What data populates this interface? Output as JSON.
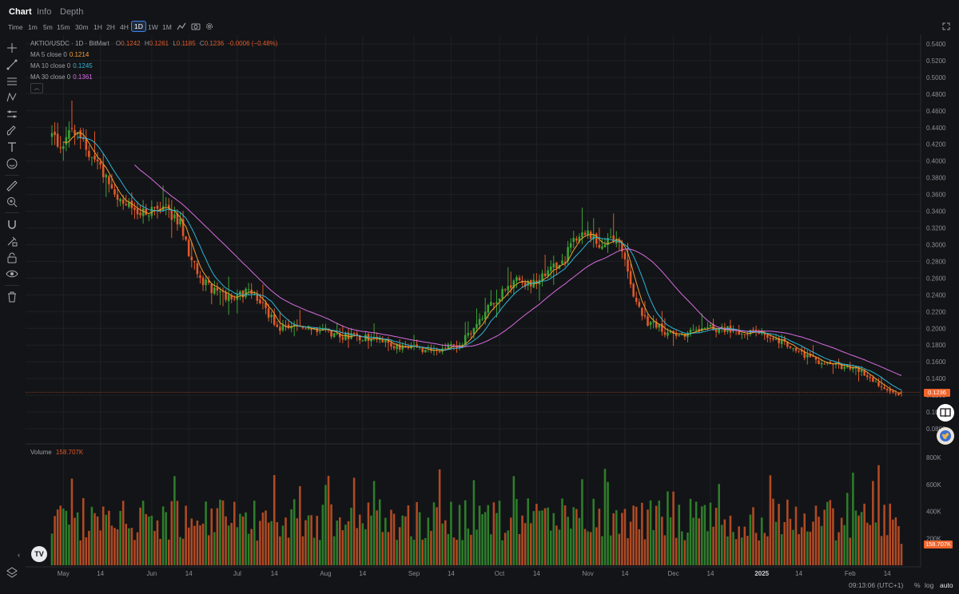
{
  "nav": {
    "tabs": [
      "Chart",
      "Info",
      "Depth"
    ],
    "active": 0
  },
  "toolbar": {
    "timeframes": [
      "Time",
      "1m",
      "5m",
      "15m",
      "30m",
      "1H",
      "2H",
      "4H",
      "1D",
      "1W",
      "1M"
    ],
    "active": 8,
    "icons": [
      "indicator-icon",
      "camera-icon",
      "settings-icon"
    ],
    "fullscreen_icon": "fullscreen-icon"
  },
  "left_tools": [
    "crosshair-icon",
    "trendline-icon",
    "fib-icon",
    "pattern-icon",
    "measure-lines-icon",
    "brush-icon",
    "text-icon",
    "emoji-icon",
    "ruler-icon",
    "zoom-in-icon",
    "magnet-icon",
    "lock-drawing-icon",
    "lock-icon",
    "eye-icon",
    "trash-icon"
  ],
  "legend": {
    "symbol": "AKTIO/USDC · 1D · BitMart",
    "ohlc": {
      "o_label": "O",
      "o": "0.1242",
      "h_label": "H",
      "h": "0.1261",
      "l_label": "L",
      "l": "0.1185",
      "c_label": "C",
      "c": "0.1236",
      "change": "-0.0006 (−0.48%)"
    },
    "ma": [
      {
        "label": "MA 5 close 0",
        "value": "0.1214",
        "color": "#f0a030"
      },
      {
        "label": "MA 10 close 0",
        "value": "0.1245",
        "color": "#2fb4d6"
      },
      {
        "label": "MA 30 close 0",
        "value": "0.1361",
        "color": "#d76ce0"
      }
    ]
  },
  "volume_legend": {
    "label": "Volume",
    "value": "158.707K"
  },
  "price_tag": "0.1236",
  "volume_tag": "158.707K",
  "footer": {
    "time": "09:13:06 (UTC+1)",
    "percent": "%",
    "log": "log",
    "auto": "auto"
  },
  "colors": {
    "up": "#3aa335",
    "down": "#e0592a",
    "bg": "#131417",
    "grid": "#1e2025",
    "ma5": "#f0a030",
    "ma10": "#2fb4d6",
    "ma30": "#d76ce0"
  },
  "chart_data": {
    "type": "candlestick",
    "symbol": "AKTIO/USDC",
    "interval": "1D",
    "y_ticks": [
      "0.5400",
      "0.5200",
      "0.5000",
      "0.4800",
      "0.4600",
      "0.4400",
      "0.4200",
      "0.4000",
      "0.3800",
      "0.3600",
      "0.3400",
      "0.3200",
      "0.3000",
      "0.2800",
      "0.2600",
      "0.2400",
      "0.2200",
      "0.2000",
      "0.1800",
      "0.1600",
      "0.1400",
      "0.1200",
      "0.1000",
      "0.0800"
    ],
    "ylim": [
      0.08,
      0.54
    ],
    "volume_ticks": [
      "800K",
      "600K",
      "400K",
      "200K"
    ],
    "volume_lim": [
      0,
      830000
    ],
    "x_ticks": [
      {
        "label": "May",
        "day": 4
      },
      {
        "label": "14",
        "day": 17
      },
      {
        "label": "Jun",
        "day": 35
      },
      {
        "label": "14",
        "day": 48
      },
      {
        "label": "Jul",
        "day": 65
      },
      {
        "label": "14",
        "day": 78
      },
      {
        "label": "Aug",
        "day": 96
      },
      {
        "label": "14",
        "day": 109
      },
      {
        "label": "Sep",
        "day": 127
      },
      {
        "label": "14",
        "day": 140
      },
      {
        "label": "Oct",
        "day": 157
      },
      {
        "label": "14",
        "day": 170
      },
      {
        "label": "Nov",
        "day": 188
      },
      {
        "label": "14",
        "day": 201
      },
      {
        "label": "Dec",
        "day": 218
      },
      {
        "label": "14",
        "day": 231
      },
      {
        "label": "2025",
        "day": 249
      },
      {
        "label": "14",
        "day": 262
      },
      {
        "label": "Feb",
        "day": 280
      },
      {
        "label": "14",
        "day": 293
      }
    ],
    "anchor_closes": [
      [
        0,
        0.43
      ],
      [
        3,
        0.42
      ],
      [
        7,
        0.44
      ],
      [
        12,
        0.42
      ],
      [
        15,
        0.4
      ],
      [
        20,
        0.38
      ],
      [
        24,
        0.35
      ],
      [
        28,
        0.34
      ],
      [
        35,
        0.34
      ],
      [
        40,
        0.34
      ],
      [
        45,
        0.33
      ],
      [
        48,
        0.29
      ],
      [
        52,
        0.26
      ],
      [
        56,
        0.245
      ],
      [
        60,
        0.24
      ],
      [
        66,
        0.24
      ],
      [
        70,
        0.245
      ],
      [
        75,
        0.22
      ],
      [
        80,
        0.2
      ],
      [
        90,
        0.2
      ],
      [
        96,
        0.2
      ],
      [
        100,
        0.19
      ],
      [
        110,
        0.19
      ],
      [
        120,
        0.18
      ],
      [
        130,
        0.175
      ],
      [
        137,
        0.175
      ],
      [
        143,
        0.18
      ],
      [
        148,
        0.2
      ],
      [
        152,
        0.22
      ],
      [
        158,
        0.245
      ],
      [
        163,
        0.255
      ],
      [
        170,
        0.255
      ],
      [
        175,
        0.27
      ],
      [
        180,
        0.28
      ],
      [
        183,
        0.31
      ],
      [
        188,
        0.31
      ],
      [
        193,
        0.3
      ],
      [
        196,
        0.31
      ],
      [
        199,
        0.3
      ],
      [
        202,
        0.27
      ],
      [
        205,
        0.23
      ],
      [
        208,
        0.21
      ],
      [
        213,
        0.2
      ],
      [
        218,
        0.19
      ],
      [
        223,
        0.195
      ],
      [
        228,
        0.2
      ],
      [
        235,
        0.2
      ],
      [
        245,
        0.195
      ],
      [
        253,
        0.19
      ],
      [
        258,
        0.18
      ],
      [
        263,
        0.17
      ],
      [
        270,
        0.16
      ],
      [
        276,
        0.155
      ],
      [
        283,
        0.15
      ],
      [
        288,
        0.135
      ],
      [
        292,
        0.13
      ],
      [
        296,
        0.12
      ],
      [
        298,
        0.1236
      ]
    ],
    "last_candle": {
      "open": 0.1242,
      "high": 0.1261,
      "low": 0.1185,
      "close": 0.1236,
      "volume": 158707
    },
    "ma_periods": [
      5,
      10,
      30
    ]
  }
}
